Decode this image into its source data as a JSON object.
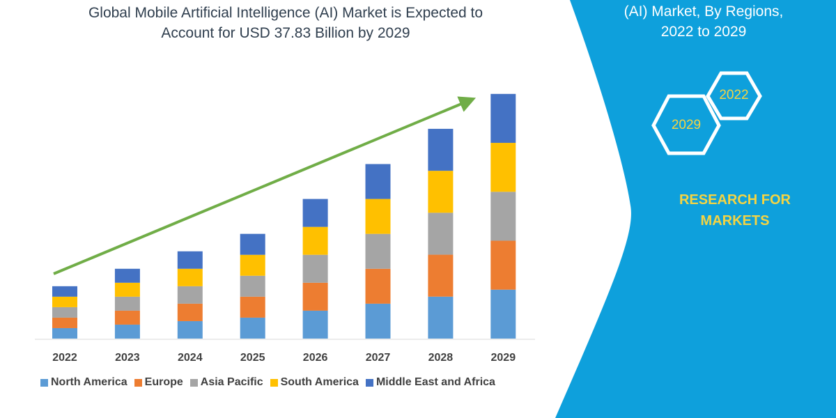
{
  "title_lines": [
    "Global Mobile Artificial Intelligence (AI) Market is Expected to",
    "Account for USD 37.83 Billion by 2029"
  ],
  "side_panel": {
    "title_lines": [
      "(AI) Market, By Regions,",
      "2022 to 2029"
    ],
    "hexagons": [
      "2022",
      "2029"
    ],
    "brand_lines": [
      "RESEARCH FOR",
      "MARKETS"
    ],
    "background_color": "#0ea0dc"
  },
  "chart_data": {
    "type": "bar",
    "stacked": true,
    "categories": [
      "2022",
      "2023",
      "2024",
      "2025",
      "2026",
      "2027",
      "2028",
      "2029"
    ],
    "series": [
      {
        "name": "North America",
        "color": "#5b9bd5",
        "values": [
          1.62,
          2.16,
          2.7,
          3.24,
          4.32,
          5.4,
          6.49,
          7.57
        ]
      },
      {
        "name": "Europe",
        "color": "#ed7d31",
        "values": [
          1.62,
          2.16,
          2.7,
          3.24,
          4.32,
          5.4,
          6.49,
          7.57
        ]
      },
      {
        "name": "Asia Pacific",
        "color": "#a5a5a5",
        "values": [
          1.62,
          2.16,
          2.7,
          3.24,
          4.32,
          5.4,
          6.49,
          7.57
        ]
      },
      {
        "name": "South America",
        "color": "#ffc000",
        "values": [
          1.62,
          2.16,
          2.7,
          3.24,
          4.32,
          5.4,
          6.49,
          7.57
        ]
      },
      {
        "name": "Middle East and Africa",
        "color": "#4472c4",
        "values": [
          1.62,
          2.16,
          2.7,
          3.24,
          4.32,
          5.4,
          6.49,
          7.57
        ]
      }
    ],
    "ylim": [
      0,
      37.83
    ],
    "grid": false,
    "legend": "bottom",
    "trend_arrow_color": "#70ad47"
  }
}
